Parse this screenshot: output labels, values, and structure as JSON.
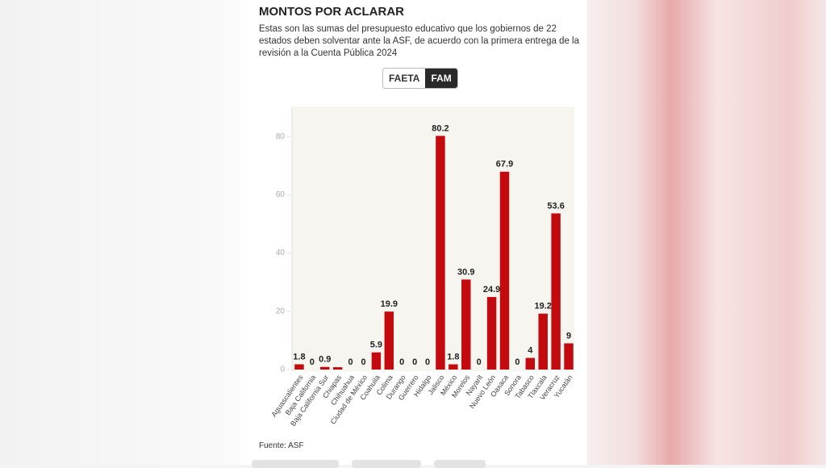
{
  "header": {
    "title": "MONTOS POR ACLARAR",
    "subtitle": "Estas son las sumas del presupuesto educativo que los gobiernos de 22 estados deben solventar ante la ASF, de acuerdo con la primera entrega de la revisión a la Cuenta Pública 2024"
  },
  "tabs": [
    "FAETA",
    "FAM"
  ],
  "chart_data": {
    "type": "bar",
    "categories": [
      "Aguascalientes",
      "Baja California",
      "Baja California Sur",
      "Chiapas",
      "Chihuahua",
      "Ciudad de México",
      "Coahuila",
      "Colima",
      "Durango",
      "Guerrero",
      "Hidalgo",
      "Jalisco",
      "México",
      "Morelos",
      "Nayarit",
      "Nuevo León",
      "Oaxaca",
      "Sonora",
      "Tabasco",
      "Tlaxcala",
      "Veracruz",
      "Yucatán"
    ],
    "values": [
      1.8,
      0,
      0.9,
      0.8,
      0,
      0,
      5.9,
      19.9,
      0,
      0,
      0,
      80.2,
      1.8,
      30.9,
      0,
      24.9,
      67.9,
      0,
      4,
      19.2,
      53.6,
      9
    ],
    "value_labels": [
      "1.8",
      "0",
      "0.9",
      null,
      "0",
      "0",
      "5.9",
      "19.9",
      "0",
      "0",
      "0",
      "80.2",
      "1.8",
      "30.9",
      "0",
      "24.9",
      "67.9",
      "0",
      "4",
      "19.2",
      "53.6",
      "9"
    ],
    "color": "#c20a0f",
    "ylim": [
      0,
      90
    ],
    "yticks": [
      0,
      20,
      40,
      60,
      80
    ]
  },
  "footer": {
    "source": "Fuente: ASF"
  }
}
